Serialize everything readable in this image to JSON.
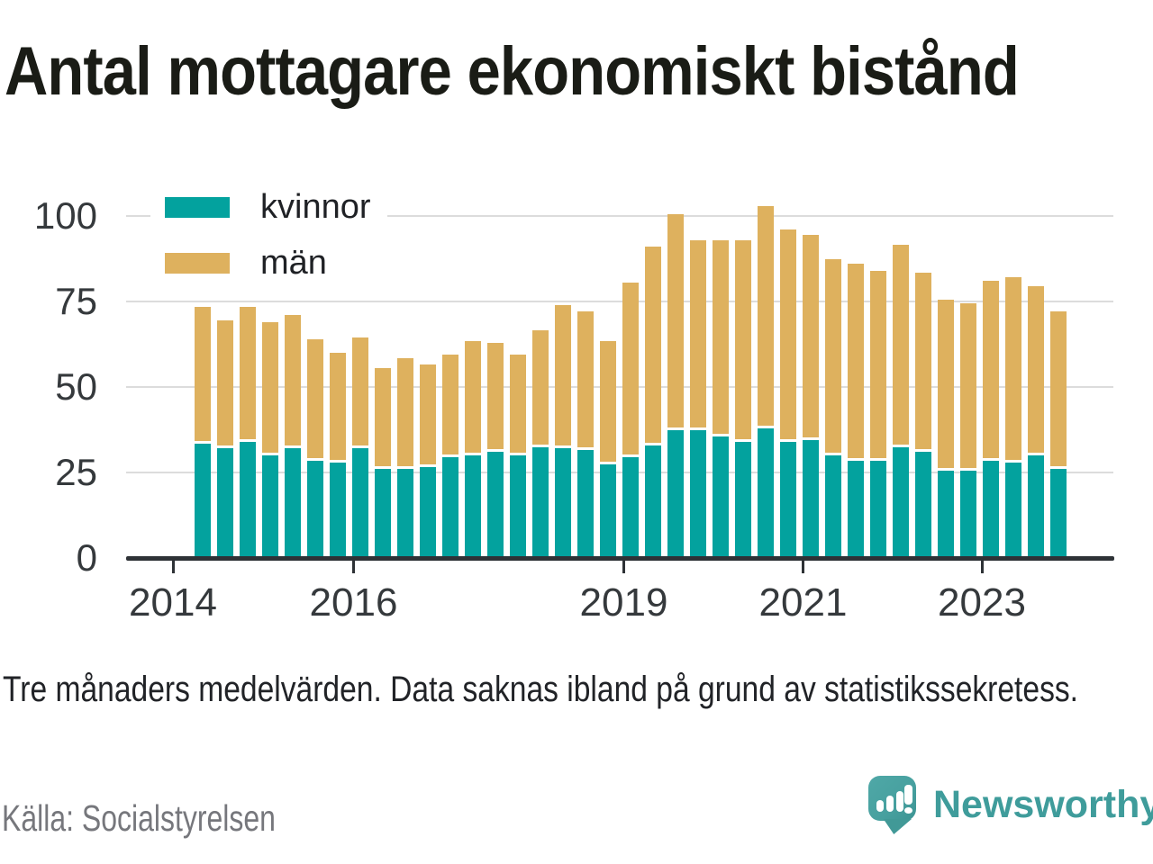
{
  "title": "Antal mottagare ekonomiskt bistånd",
  "footnote": "Tre månaders medelvärden. Data saknas ibland på grund av statistikssekretess.",
  "source": "Källa: Socialstyrelsen",
  "branding": {
    "name": "Newsworthy",
    "color": "#3f9c9b",
    "bubble_color": "#47a09f"
  },
  "colors": {
    "kvinnor": "#03a29e",
    "man": "#deb15e",
    "gridline": "#dcdcdc",
    "axis": "#2e3236",
    "text": "#35393c"
  },
  "chart_data": {
    "type": "bar",
    "stacked": true,
    "title": "Antal mottagare ekonomiskt bistånd",
    "xlabel": "",
    "ylabel": "",
    "ylim": [
      0,
      110
    ],
    "yticks": [
      0,
      25,
      50,
      75,
      100
    ],
    "xtick_labels": [
      "2014",
      "2016",
      "2019",
      "2021",
      "2023"
    ],
    "grid": "horizontal",
    "legend_position": "top-left",
    "categories": [
      "2014 Q2",
      "2014 Q3",
      "2014 Q4",
      "2015 Q1",
      "2015 Q2",
      "2015 Q3",
      "2015 Q4",
      "2016 Q1",
      "2016 Q2",
      "2016 Q3",
      "2016 Q4",
      "2017 Q1",
      "2017 Q2",
      "2017 Q3",
      "2017 Q4",
      "2018 Q1",
      "2018 Q2",
      "2018 Q3",
      "2018 Q4",
      "2019 Q1",
      "2019 Q2",
      "2019 Q3",
      "2019 Q4",
      "2020 Q1",
      "2020 Q2",
      "2020 Q3",
      "2020 Q4",
      "2021 Q1",
      "2021 Q2",
      "2021 Q3",
      "2021 Q4",
      "2022 Q1",
      "2022 Q2",
      "2022 Q3",
      "2022 Q4",
      "2023 Q1",
      "2023 Q2",
      "2023 Q3",
      "2023 Q4"
    ],
    "series": [
      {
        "name": "kvinnor",
        "color": "#03a29e",
        "values": [
          33.5,
          32,
          34,
          30,
          32,
          28.5,
          28,
          32,
          26,
          26,
          26.5,
          29.5,
          30,
          31,
          30,
          32.5,
          32,
          31.5,
          27.5,
          29.5,
          33,
          37.5,
          37.5,
          35.5,
          34,
          38,
          34,
          34.5,
          30,
          28.5,
          28.5,
          32.5,
          31,
          25.5,
          25.5,
          28.5,
          28,
          30,
          26
        ]
      },
      {
        "name": "män",
        "color": "#deb15e",
        "values": [
          40,
          37.5,
          39.5,
          39,
          39,
          35.5,
          32,
          32.5,
          29.5,
          32.5,
          30,
          30,
          33.5,
          32,
          29.5,
          34,
          42,
          40.5,
          36,
          51,
          58,
          63,
          55.5,
          57.5,
          59,
          65,
          62,
          60,
          57.5,
          57.5,
          55.5,
          59,
          52.5,
          50,
          49,
          52.5,
          54,
          49.5,
          46
        ]
      }
    ]
  }
}
